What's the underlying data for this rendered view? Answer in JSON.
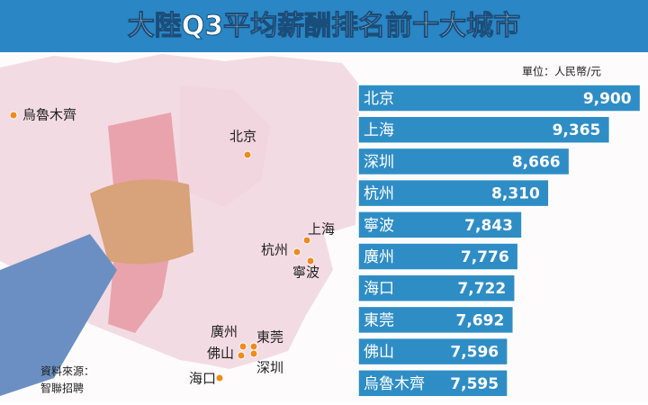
{
  "chart_data": {
    "type": "bar",
    "orientation": "horizontal",
    "title": "大陸Q3平均薪酬排名前十大城市",
    "unit_note": "單位：人民幣/元",
    "categories": [
      "北京",
      "上海",
      "深圳",
      "杭州",
      "寧波",
      "廣州",
      "海口",
      "東莞",
      "佛山",
      "烏魯木齊"
    ],
    "values": [
      9900,
      9365,
      8666,
      8310,
      7843,
      7776,
      7722,
      7692,
      7596,
      7595
    ],
    "value_labels": [
      "9,900",
      "9,365",
      "8,666",
      "8,310",
      "7,843",
      "7,776",
      "7,722",
      "7,692",
      "7,596",
      "7,595"
    ],
    "color": "#2f8dc6",
    "xlim": [
      5000,
      10000
    ]
  },
  "map": {
    "cities": [
      "烏魯木齊",
      "北京",
      "上海",
      "杭州",
      "寧波",
      "廣州",
      "東莞",
      "佛山",
      "深圳",
      "海口"
    ]
  },
  "source": [
    "資料來源：",
    "智聯招聘"
  ]
}
